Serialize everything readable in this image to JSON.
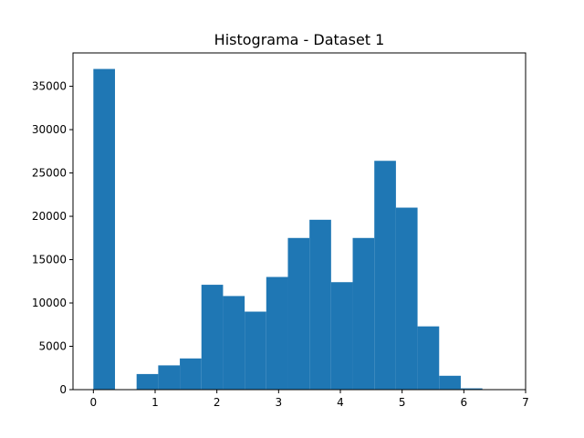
{
  "chart_data": {
    "type": "bar",
    "title": "Histograma - Dataset 1",
    "xlabel": "",
    "ylabel": "",
    "bar_color": "#1f77b4",
    "bins": [
      {
        "x0": 0.0,
        "x1": 0.35,
        "count": 37000
      },
      {
        "x0": 0.35,
        "x1": 0.7,
        "count": 0
      },
      {
        "x0": 0.7,
        "x1": 1.05,
        "count": 1800
      },
      {
        "x0": 1.05,
        "x1": 1.4,
        "count": 2800
      },
      {
        "x0": 1.4,
        "x1": 1.75,
        "count": 3600
      },
      {
        "x0": 1.75,
        "x1": 2.1,
        "count": 12100
      },
      {
        "x0": 2.1,
        "x1": 2.45,
        "count": 10800
      },
      {
        "x0": 2.45,
        "x1": 2.8,
        "count": 9000
      },
      {
        "x0": 2.8,
        "x1": 3.15,
        "count": 13000
      },
      {
        "x0": 3.15,
        "x1": 3.5,
        "count": 17500
      },
      {
        "x0": 3.5,
        "x1": 3.85,
        "count": 19600
      },
      {
        "x0": 3.85,
        "x1": 4.2,
        "count": 12400
      },
      {
        "x0": 4.2,
        "x1": 4.55,
        "count": 17500
      },
      {
        "x0": 4.55,
        "x1": 4.9,
        "count": 26400
      },
      {
        "x0": 4.9,
        "x1": 5.25,
        "count": 21000
      },
      {
        "x0": 5.25,
        "x1": 5.6,
        "count": 7300
      },
      {
        "x0": 5.6,
        "x1": 5.95,
        "count": 1600
      },
      {
        "x0": 5.95,
        "x1": 6.3,
        "count": 150
      },
      {
        "x0": 6.3,
        "x1": 6.65,
        "count": 0
      }
    ],
    "xlim": [
      -0.33,
      7.0
    ],
    "ylim": [
      0,
      38850
    ],
    "xticks": [
      0,
      1,
      2,
      3,
      4,
      5,
      6,
      7
    ],
    "yticks": [
      0,
      5000,
      10000,
      15000,
      20000,
      25000,
      30000,
      35000
    ],
    "grid": false
  }
}
